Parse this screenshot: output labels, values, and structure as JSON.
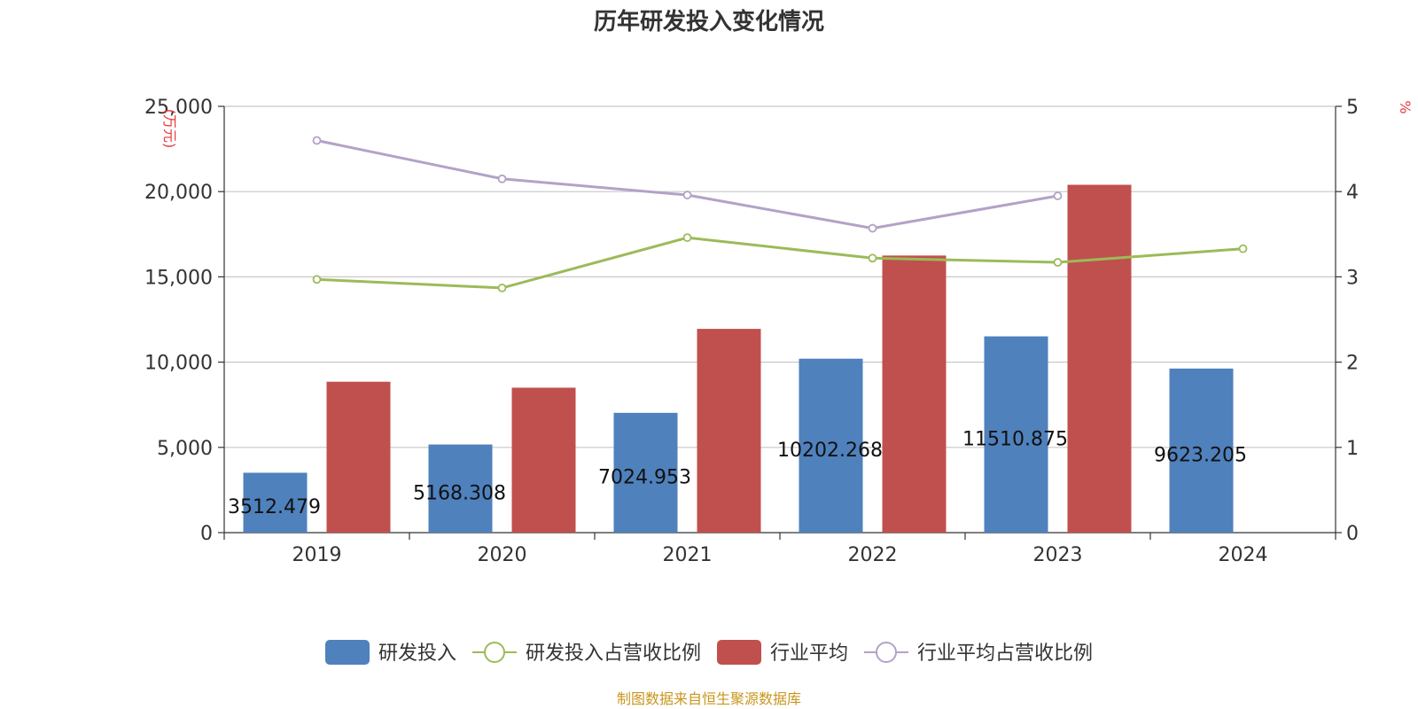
{
  "chart_data": {
    "type": "bar",
    "title": "历年研发投入变化情况",
    "categories": [
      "2019",
      "2020",
      "2021",
      "2022",
      "2023",
      "2024"
    ],
    "y_left": {
      "unit_label": "万元",
      "ylim": [
        0,
        25000
      ],
      "ticks": [
        0,
        5000,
        10000,
        15000,
        20000,
        25000
      ],
      "tick_labels": [
        "0",
        "5,000",
        "10,000",
        "15,000",
        "20,000",
        "25,000"
      ]
    },
    "y_right": {
      "unit_label": "%",
      "ylim": [
        0,
        5
      ],
      "ticks": [
        0,
        1,
        2,
        3,
        4,
        5
      ],
      "tick_labels": [
        "0",
        "1",
        "2",
        "3",
        "4",
        "5"
      ]
    },
    "grid": true,
    "legend_position": "bottom",
    "series": [
      {
        "name": "研发投入",
        "type": "bar",
        "axis": "left",
        "color": "#4f81bd",
        "values": [
          3512.479,
          5168.308,
          7024.953,
          10202.268,
          11510.875,
          9623.205
        ],
        "labels": [
          "3512.479",
          "5168.308",
          "7024.953",
          "10202.268",
          "11510.875",
          "9623.205"
        ]
      },
      {
        "name": "研发投入占营收比例",
        "type": "line",
        "axis": "right",
        "color": "#9bbb59",
        "values": [
          2.97,
          2.87,
          3.46,
          3.22,
          3.17,
          3.33
        ]
      },
      {
        "name": "行业平均",
        "type": "bar",
        "axis": "left",
        "color": "#c0504d",
        "values": [
          8850,
          8500,
          11950,
          16250,
          20400,
          null
        ]
      },
      {
        "name": "行业平均占营收比例",
        "type": "line",
        "axis": "right",
        "color": "#b3a2c7",
        "values": [
          4.6,
          4.15,
          3.96,
          3.57,
          3.95,
          null
        ]
      }
    ]
  },
  "source": "制图数据来自恒生聚源数据库"
}
